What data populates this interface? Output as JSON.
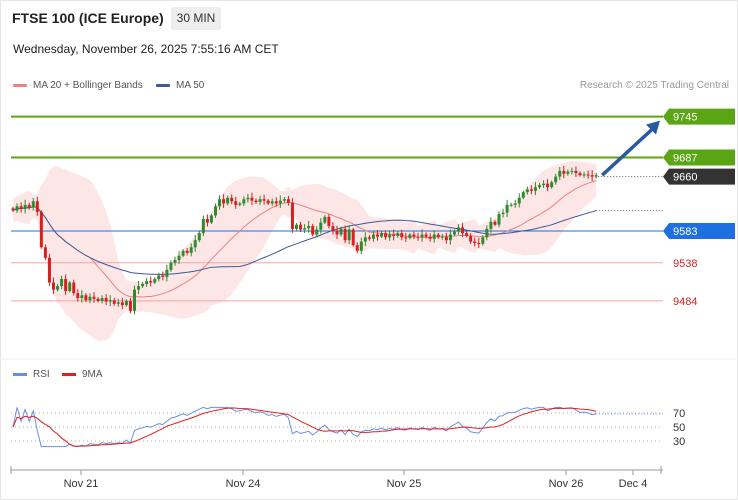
{
  "header": {
    "title": "FTSE 100 (ICE Europe)",
    "timeframe": "30 MIN",
    "datetime": "Wednesday, November 26, 2025 7:55:16 AM CET"
  },
  "legend": {
    "bollinger_label": "MA 20 + Bollinger Bands",
    "ma50_label": "MA 50",
    "copyright": "Research © 2025 Trading Central"
  },
  "rsi_legend": {
    "rsi_label": "RSI",
    "ma9_label": "9MA"
  },
  "colors": {
    "up_candle": "#2e8b2e",
    "down_candle": "#d62020",
    "bollinger_fill": "#fde3e3",
    "ma20": "#f08080",
    "ma50": "#3a5a9a",
    "resistance": "#5aa514",
    "pivot": "#1e6fe0",
    "support": "#f4a3a3",
    "last_price": "#333333",
    "forecast_arrow": "#2a5a9e",
    "rsi": "#6a8fe0",
    "rsi_ma": "#e02020"
  },
  "chart_data": [
    {
      "type": "candlestick",
      "title": "",
      "x_ticks": [
        "Nov 21",
        "Nov 24",
        "Nov 25",
        "Nov 26",
        "Dec 4"
      ],
      "levels": [
        {
          "label": "9745",
          "value": 9745,
          "kind": "resistance"
        },
        {
          "label": "9687",
          "value": 9687,
          "kind": "resistance"
        },
        {
          "label": "9660",
          "value": 9660,
          "kind": "last"
        },
        {
          "label": "9583",
          "value": 9583,
          "kind": "pivot"
        },
        {
          "label": "9538",
          "value": 9538,
          "kind": "support"
        },
        {
          "label": "9484",
          "value": 9484,
          "kind": "support"
        }
      ],
      "ylim": [
        9450,
        9780
      ],
      "close": [
        9612,
        9618,
        9614,
        9620,
        9616,
        9625,
        9610,
        9560,
        9545,
        9510,
        9500,
        9505,
        9515,
        9498,
        9510,
        9495,
        9488,
        9492,
        9485,
        9490,
        9487,
        9484,
        9488,
        9483,
        9485,
        9480,
        9482,
        9478,
        9484,
        9470,
        9500,
        9505,
        9508,
        9512,
        9510,
        9515,
        9520,
        9518,
        9528,
        9538,
        9542,
        9548,
        9555,
        9552,
        9560,
        9570,
        9580,
        9600,
        9595,
        9605,
        9618,
        9628,
        9622,
        9630,
        9625,
        9620,
        9622,
        9628,
        9630,
        9626,
        9624,
        9628,
        9626,
        9622,
        9625,
        9622,
        9626,
        9628,
        9623,
        9586,
        9592,
        9585,
        9587,
        9590,
        9578,
        9585,
        9595,
        9603,
        9590,
        9583,
        9578,
        9586,
        9570,
        9585,
        9563,
        9555,
        9568,
        9574,
        9572,
        9578,
        9575,
        9580,
        9574,
        9578,
        9576,
        9580,
        9574,
        9573,
        9578,
        9575,
        9574,
        9578,
        9575,
        9572,
        9578,
        9574,
        9575,
        9570,
        9578,
        9582,
        9588,
        9580,
        9576,
        9568,
        9566,
        9565,
        9574,
        9586,
        9596,
        9592,
        9607,
        9609,
        9620,
        9620,
        9622,
        9630,
        9638,
        9642,
        9640,
        9645,
        9648,
        9650,
        9645,
        9652,
        9660,
        9668,
        9664,
        9667,
        9668,
        9665,
        9662,
        9663,
        9662,
        9660,
        9662
      ]
    },
    {
      "type": "line",
      "title": "",
      "series": [
        {
          "name": "RSI"
        },
        {
          "name": "9MA"
        }
      ],
      "y_ticks": [
        30,
        50,
        70
      ],
      "ylim": [
        20,
        80
      ]
    }
  ]
}
